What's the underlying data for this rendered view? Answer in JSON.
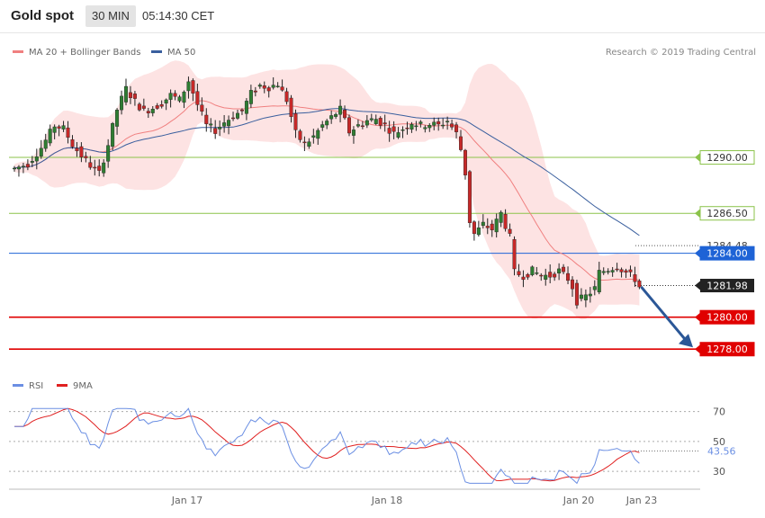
{
  "header": {
    "title": "Gold spot",
    "interval": "30 MIN",
    "time": "05:14:30 CET"
  },
  "colors": {
    "bull": "#2e7d32",
    "bear": "#c62828",
    "band_fill": "#fde3e3",
    "ma20": "#f08080",
    "ma50": "#3a5f9e",
    "green_level": "#8bc34a",
    "blue_level": "#1e63d6",
    "red_level": "#e00000",
    "arrow": "#2b5797",
    "rsi": "#6b8fe3",
    "rsi_ma": "#e02020"
  },
  "chart_data": [
    {
      "type": "candlestick",
      "legend": [
        {
          "label": "MA 20 + Bollinger Bands",
          "color": "#f08080"
        },
        {
          "label": "MA 50",
          "color": "#3a5f9e"
        }
      ],
      "credit": "Research © 2019 Trading Central",
      "ylim": [
        1277.0,
        1295.8
      ],
      "levels": [
        {
          "value": "1290.00",
          "color": "#8bc34a",
          "style": "line"
        },
        {
          "value": "1286.50",
          "color": "#8bc34a",
          "style": "line"
        },
        {
          "value": "1284.48",
          "color": "#666666",
          "style": "dotted-text"
        },
        {
          "value": "1284.00",
          "color": "#1e63d6",
          "style": "line"
        },
        {
          "value": "1281.98",
          "color": "#222222",
          "style": "last"
        },
        {
          "value": "1280.00",
          "color": "#e00000",
          "style": "line"
        },
        {
          "value": "1278.00",
          "color": "#e00000",
          "style": "line"
        }
      ],
      "x_ticks": [
        "Jan 17",
        "Jan 18",
        "Jan 20",
        "Jan 23"
      ],
      "projection": {
        "from": 1281.9,
        "to": 1278.0
      }
    },
    {
      "type": "line",
      "legend": [
        {
          "label": "RSI",
          "color": "#6b8fe3"
        },
        {
          "label": "9MA",
          "color": "#e02020"
        }
      ],
      "ylim": [
        18,
        80
      ],
      "y_ticks": [
        "70",
        "50",
        "30"
      ],
      "last_value": "43.56"
    }
  ]
}
